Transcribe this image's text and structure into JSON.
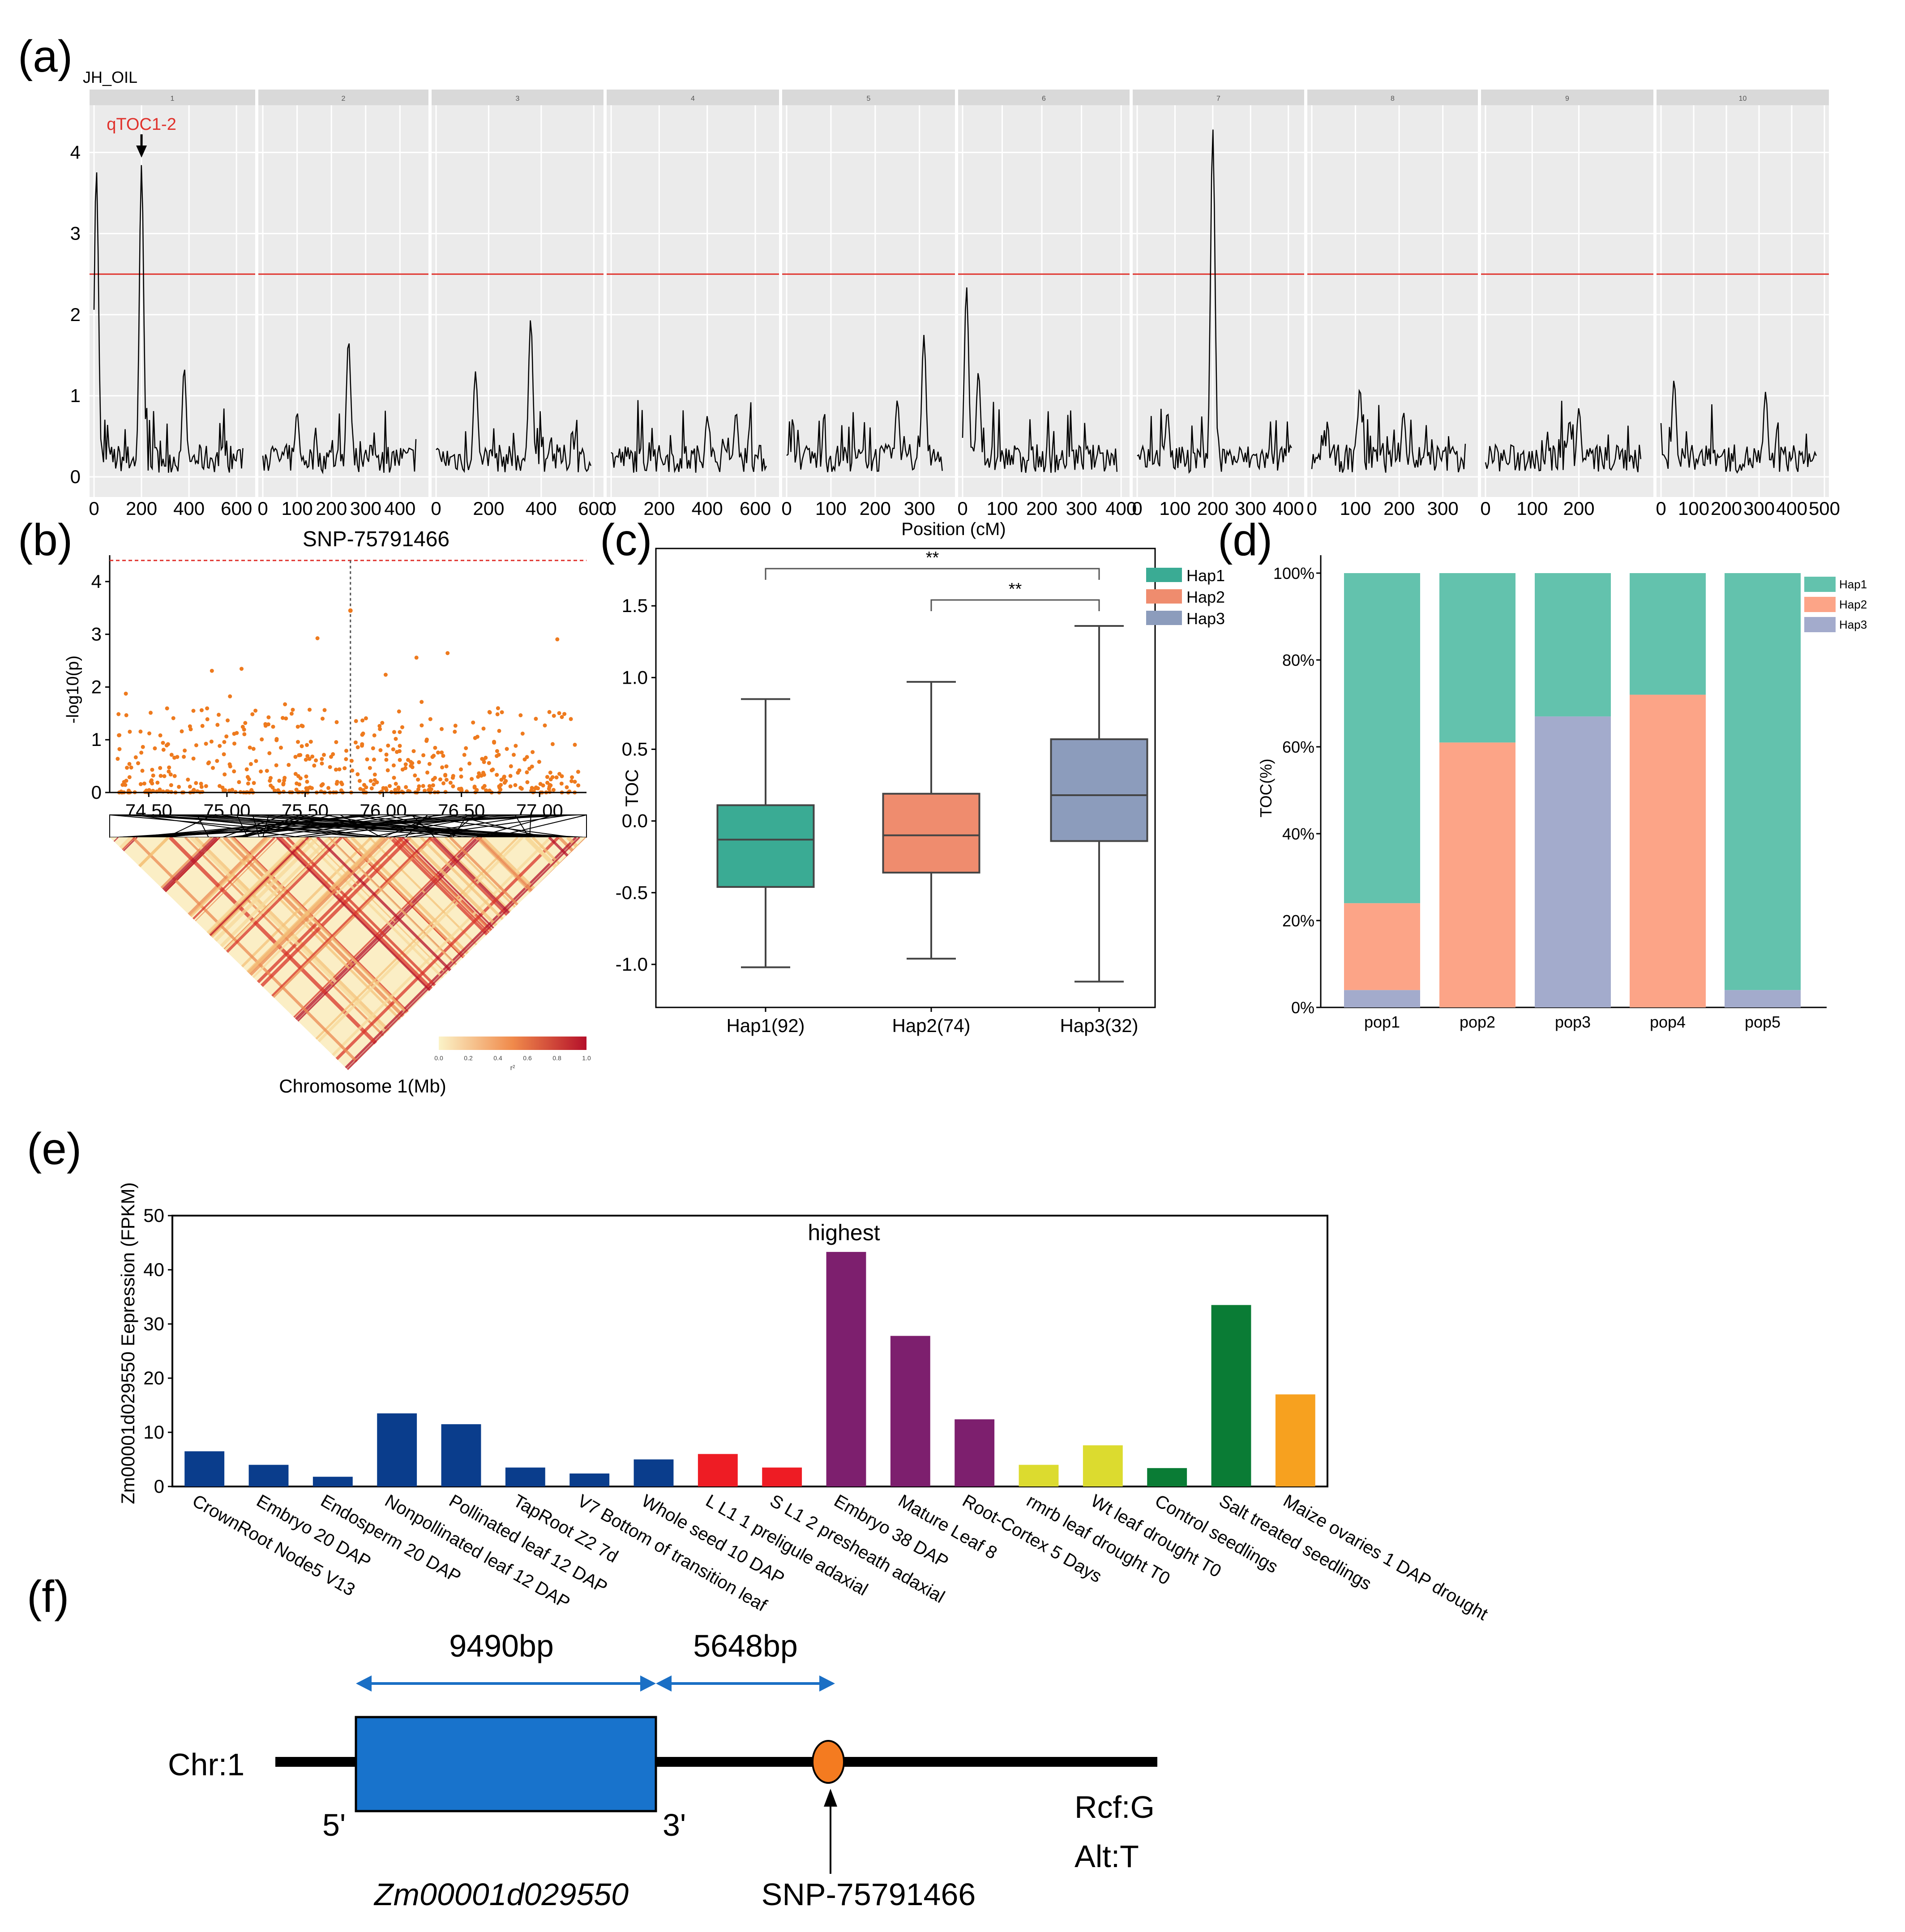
{
  "panel_labels": {
    "a": "(a)",
    "b": "(b)",
    "c": "(c)",
    "d": "(d)",
    "e": "(e)",
    "f": "(f)"
  },
  "chart_data": [
    {
      "id": "a",
      "type": "line",
      "title": "JH_OIL",
      "xlabel": "Position (cM)",
      "ylabel": "",
      "ylim": [
        0,
        4.5
      ],
      "yticks": [
        "0",
        "1",
        "2",
        "3",
        "4"
      ],
      "threshold": 2.5,
      "annotation": "qTOC1-2",
      "chromosomes": [
        {
          "label": "1",
          "xmax": 660,
          "ticks": [
            0,
            200,
            400,
            600
          ],
          "tick_labels": [
            "0",
            "200",
            "400",
            "600"
          ],
          "peaks": [
            [
              10,
              3.8
            ],
            [
              200,
              3.85
            ],
            [
              380,
              1.35
            ]
          ]
        },
        {
          "label": "2",
          "xmax": 470,
          "ticks": [
            0,
            100,
            200,
            300,
            400
          ],
          "tick_labels": [
            "0",
            "100",
            "200",
            "300",
            "400"
          ],
          "peaks": [
            [
              250,
              1.7
            ],
            [
              100,
              0.8
            ]
          ]
        },
        {
          "label": "3",
          "xmax": 620,
          "ticks": [
            0,
            200,
            400,
            600
          ],
          "tick_labels": [
            "0",
            "200",
            "400",
            "600"
          ],
          "peaks": [
            [
              360,
              1.95
            ],
            [
              150,
              1.3
            ]
          ]
        },
        {
          "label": "4",
          "xmax": 680,
          "ticks": [
            0,
            200,
            400,
            600
          ],
          "tick_labels": [
            "0",
            "200",
            "400",
            "600"
          ],
          "peaks": [
            [
              400,
              0.75
            ],
            [
              520,
              0.8
            ]
          ]
        },
        {
          "label": "5",
          "xmax": 370,
          "ticks": [
            0,
            100,
            200,
            300
          ],
          "tick_labels": [
            "0",
            "100",
            "200",
            "300"
          ],
          "peaks": [
            [
              310,
              1.75
            ],
            [
              250,
              0.95
            ]
          ]
        },
        {
          "label": "6",
          "xmax": 410,
          "ticks": [
            0,
            100,
            200,
            300,
            400
          ],
          "tick_labels": [
            "0",
            "100",
            "200",
            "300",
            "400"
          ],
          "peaks": [
            [
              10,
              2.35
            ],
            [
              40,
              1.3
            ]
          ]
        },
        {
          "label": "7",
          "xmax": 430,
          "ticks": [
            0,
            100,
            200,
            300,
            400
          ],
          "tick_labels": [
            "0",
            "100",
            "200",
            "300",
            "400"
          ],
          "peaks": [
            [
              200,
              4.3
            ],
            [
              80,
              0.8
            ]
          ]
        },
        {
          "label": "8",
          "xmax": 370,
          "ticks": [
            0,
            100,
            200,
            300
          ],
          "tick_labels": [
            "0",
            "100",
            "200",
            "300"
          ],
          "peaks": [
            [
              110,
              1.1
            ],
            [
              210,
              0.8
            ]
          ]
        },
        {
          "label": "9",
          "xmax": 350,
          "ticks": [
            0,
            100,
            200
          ],
          "tick_labels": [
            "0",
            "100",
            "200"
          ],
          "peaks": [
            [
              200,
              0.85
            ],
            [
              180,
              0.7
            ]
          ]
        },
        {
          "label": "10",
          "xmax": 500,
          "ticks": [
            0,
            100,
            200,
            300,
            400,
            500
          ],
          "tick_labels": [
            "0",
            "100",
            "200",
            "300",
            "400",
            "500"
          ],
          "peaks": [
            [
              40,
              1.2
            ],
            [
              320,
              1.05
            ]
          ]
        }
      ]
    },
    {
      "id": "b",
      "type": "scatter",
      "title": "SNP-75791466",
      "ylabel": "-log10(p)",
      "xlabel": "Chromosome 1(Mb)",
      "xlim": [
        74.25,
        77.3
      ],
      "ylim": [
        0,
        4.5
      ],
      "xticks": [
        "74.50",
        "75.00",
        "75.50",
        "76.00",
        "76.50",
        "77.00"
      ],
      "yticks": [
        "0",
        "1",
        "2",
        "3",
        "4"
      ],
      "threshold": 4.4,
      "lead_snp_x": 75.79,
      "ld_legend_ticks": [
        "0.0",
        "0.2",
        "0.4",
        "0.6",
        "0.8",
        "1.0"
      ],
      "ld_legend_label": "r²"
    },
    {
      "id": "c",
      "type": "box",
      "ylabel": "TOC",
      "ylim": [
        -1.3,
        1.9
      ],
      "yticks": [
        "-1.0",
        "-0.5",
        "0.0",
        "0.5",
        "1.0",
        "1.5"
      ],
      "categories": [
        "Hap1(92)",
        "Hap2(74)",
        "Hap3(32)"
      ],
      "legend": [
        "Hap1",
        "Hap2",
        "Hap3"
      ],
      "colors": [
        "#3aab94",
        "#ef8c6e",
        "#8c9cbc"
      ],
      "boxes": [
        {
          "min": -1.02,
          "q1": -0.46,
          "median": -0.13,
          "q3": 0.11,
          "max": 0.85
        },
        {
          "min": -0.96,
          "q1": -0.36,
          "median": -0.1,
          "q3": 0.19,
          "max": 0.97
        },
        {
          "min": -1.12,
          "q1": -0.14,
          "median": 0.18,
          "q3": 0.57,
          "max": 1.36
        }
      ],
      "significance": [
        {
          "from": 0,
          "to": 2,
          "label": "**"
        },
        {
          "from": 1,
          "to": 2,
          "label": "**"
        }
      ]
    },
    {
      "id": "d",
      "type": "bar",
      "ylabel": "TOC(%)",
      "yticks": [
        "0%",
        "20%",
        "40%",
        "60%",
        "80%",
        "100%"
      ],
      "categories": [
        "pop1",
        "pop2",
        "pop3",
        "pop4",
        "pop5"
      ],
      "legend": [
        "Hap1",
        "Hap2",
        "Hap3"
      ],
      "colors": [
        "#63c2ad",
        "#fca487",
        "#a3abcc"
      ],
      "series": [
        {
          "name": "Hap3",
          "values": [
            4,
            0,
            67,
            0,
            4
          ]
        },
        {
          "name": "Hap2",
          "values": [
            20,
            61,
            0,
            72,
            0
          ]
        },
        {
          "name": "Hap1",
          "values": [
            76,
            39,
            33,
            28,
            96
          ]
        }
      ]
    },
    {
      "id": "e",
      "type": "bar",
      "ylabel": "Zm00001d029550 Eepression (FPKM)",
      "ylim": [
        0,
        50
      ],
      "yticks": [
        "0",
        "10",
        "20",
        "30",
        "40",
        "50"
      ],
      "annotation": "highest",
      "categories": [
        "CrownRoot Node5 V13",
        "Embryo 20 DAP",
        "Endosperm 20 DAP",
        "Nonpollinated leaf 12 DAP",
        "Pollinated leaf 12 DAP",
        "TapRoot Z2 7d",
        "V7 Bottom of transition leaf",
        "Whole seed 10 DAP",
        "L L1 1 preligule adaxial",
        "S L1 2 presheath adaxial",
        "Embryo 38 DAP",
        "Mature Leaf 8",
        "Root-Cortex 5 Days",
        "rmrb leaf drought T0",
        "Wt leaf drought T0",
        "Control seedlings",
        "Salt treated seedlings",
        "Maize ovaries 1 DAP drought"
      ],
      "values": [
        6.5,
        4,
        1.8,
        13.5,
        11.5,
        3.5,
        2.4,
        5,
        6,
        3.5,
        43.3,
        27.8,
        12.4,
        4,
        7.6,
        3.4,
        33.5,
        17
      ],
      "colors": [
        "#0a3d8c",
        "#0a3d8c",
        "#0a3d8c",
        "#0a3d8c",
        "#0a3d8c",
        "#0a3d8c",
        "#0a3d8c",
        "#0a3d8c",
        "#ee1c24",
        "#ee1c24",
        "#7d1f6e",
        "#7d1f6e",
        "#7d1f6e",
        "#dcdb2f",
        "#dcdb2f",
        "#0a7c35",
        "#0a7c35",
        "#f7a11f"
      ]
    }
  ],
  "gene_diagram": {
    "chr_label": "Chr:1",
    "dist1": "9490bp",
    "dist2": "5648bp",
    "five_prime": "5'",
    "three_prime": "3'",
    "gene_name": "Zm00001d029550",
    "snp_name": "SNP-75791466",
    "ref": "Rcf:G",
    "alt": "Alt:T"
  }
}
